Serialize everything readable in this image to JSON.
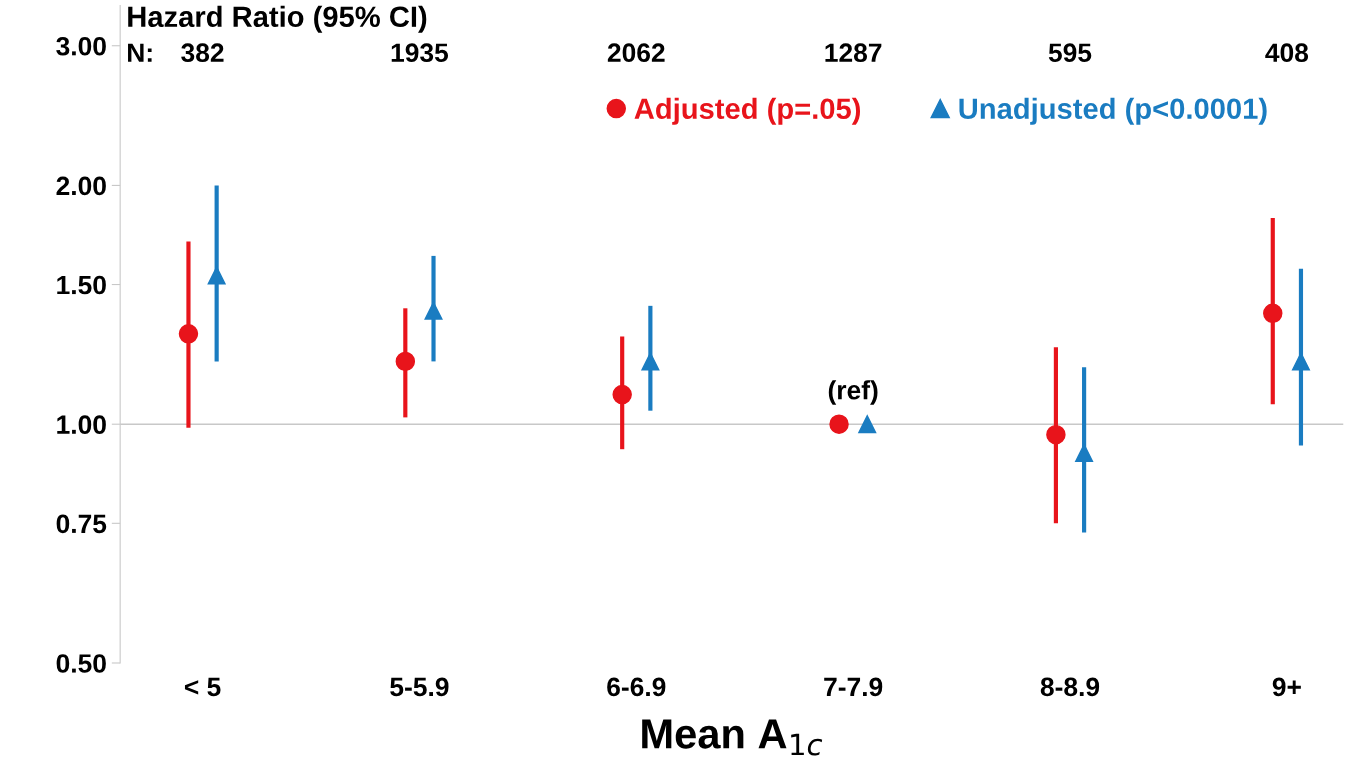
{
  "chart_data": {
    "type": "scatter",
    "ylabel": "Hazard Ratio (95% CI)",
    "xlabel": "Mean A$_{1c}$",
    "categories": [
      "< 5",
      "5-5.9",
      "6-6.9",
      "7-7.9",
      "8-8.9",
      "9+"
    ],
    "series": [
      {
        "name": "Adjusted (p=.05)",
        "color": "#e8141b",
        "marker": "circle",
        "values": [
          1.3,
          1.2,
          1.09,
          1.0,
          0.97,
          1.38
        ],
        "errors": [
          [
            0.99,
            1.7
          ],
          [
            1.02,
            1.4
          ],
          [
            0.93,
            1.29
          ],
          null,
          [
            0.75,
            1.25
          ],
          [
            1.06,
            1.82
          ]
        ]
      },
      {
        "name": "Unadjusted (p<0.0001)",
        "color": "#1a7cc1",
        "marker": "triangle",
        "values": [
          1.54,
          1.39,
          1.2,
          1.0,
          0.92,
          1.2
        ],
        "errors": [
          [
            1.2,
            2.0
          ],
          [
            1.2,
            1.63
          ],
          [
            1.04,
            1.41
          ],
          null,
          [
            0.73,
            1.18
          ],
          [
            0.94,
            1.57
          ]
        ]
      }
    ],
    "log": true,
    "ylim": [
      0.5,
      3.37
    ],
    "yticks": [
      {
        "value": 0.5,
        "label": "0.50"
      },
      {
        "value": 0.75,
        "label": "0.75"
      },
      {
        "value": 1.0,
        "label": "1.00"
      },
      {
        "value": 1.5,
        "label": "1.50"
      },
      {
        "value": 2.0,
        "label": "2.00"
      },
      {
        "value": 3.0,
        "label": "3.00"
      }
    ],
    "ref_lines": [
      {
        "axis": "y",
        "value": 1.0,
        "color": "#c8c8c8"
      }
    ],
    "annotations": [
      "N:",
      "382",
      "1935",
      "2062",
      "1287",
      "595",
      "408",
      {
        "text": "(ref)",
        "x": "7-7.9",
        "y": 1.0
      }
    ],
    "grid": false,
    "legend": "top right"
  }
}
